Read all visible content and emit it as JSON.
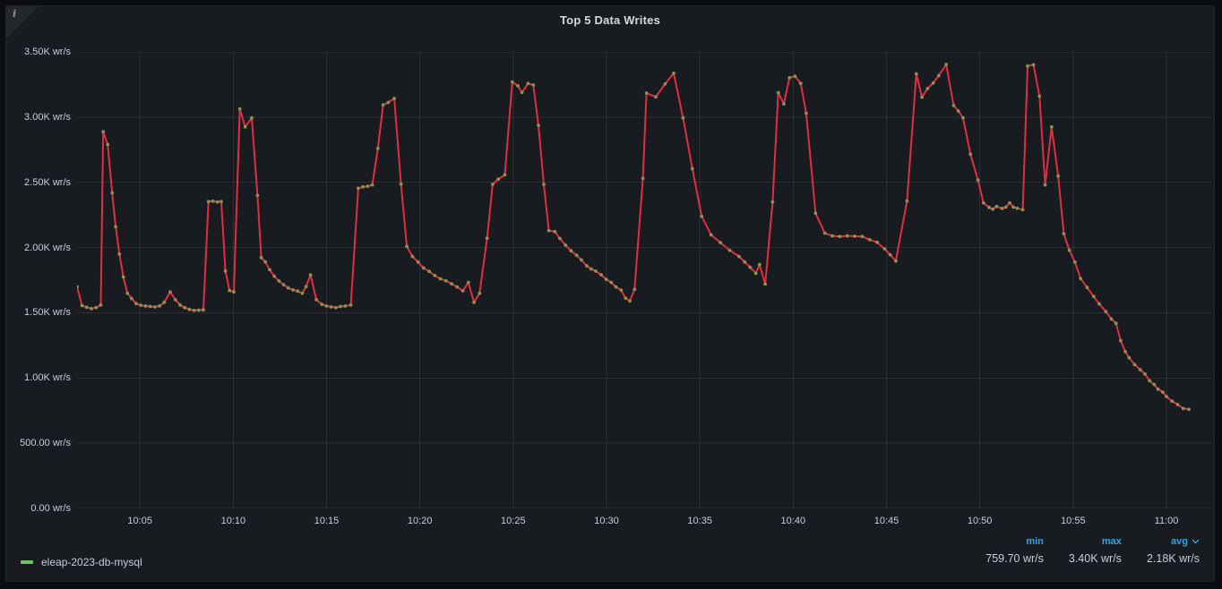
{
  "panel": {
    "title": "Top 5 Data Writes",
    "info_icon_glyph": "i"
  },
  "colors": {
    "page_bg": "#0c0d11",
    "panel_bg": "#181b1f",
    "panel_border": "#25272d",
    "title_text": "#d8d9da",
    "axis_text": "#c9ced6",
    "grid": "rgba(204,204,220,0.10)",
    "line": "#e02f44",
    "point": "#8a9254",
    "legend_swatch": "#73bf69",
    "stat_header": "#33a2e5",
    "stat_value": "#c9ced6"
  },
  "legend": {
    "series_label": "eleap-2023-db-mysql"
  },
  "stats": {
    "columns": [
      {
        "label": "min",
        "value": "759.70 wr/s",
        "sorted": false
      },
      {
        "label": "max",
        "value": "3.40K wr/s",
        "sorted": false
      },
      {
        "label": "avg",
        "value": "2.18K wr/s",
        "sorted": true
      }
    ]
  },
  "chart_data": {
    "type": "line",
    "title": "Top 5 Data Writes",
    "unit": "wr/s",
    "grid": true,
    "legend_position": "bottom",
    "x_axis": {
      "description": "time of day; minutes are offsets after 10:00",
      "plot_min_minute": 1.63,
      "plot_max_minute": 62.45,
      "ticks": [
        {
          "minute": 5,
          "label": "10:05"
        },
        {
          "minute": 10,
          "label": "10:10"
        },
        {
          "minute": 15,
          "label": "10:15"
        },
        {
          "minute": 20,
          "label": "10:20"
        },
        {
          "minute": 25,
          "label": "10:25"
        },
        {
          "minute": 30,
          "label": "10:30"
        },
        {
          "minute": 35,
          "label": "10:35"
        },
        {
          "minute": 40,
          "label": "10:40"
        },
        {
          "minute": 45,
          "label": "10:45"
        },
        {
          "minute": 50,
          "label": "10:50"
        },
        {
          "minute": 55,
          "label": "10:55"
        },
        {
          "minute": 60,
          "label": "11:00"
        }
      ]
    },
    "y_axis": {
      "min": 0,
      "max": 3500,
      "ticks": [
        {
          "value": 3500,
          "label": "3.50K wr/s"
        },
        {
          "value": 3000,
          "label": "3.00K wr/s"
        },
        {
          "value": 2500,
          "label": "2.50K wr/s"
        },
        {
          "value": 2000,
          "label": "2.00K wr/s"
        },
        {
          "value": 1500,
          "label": "1.50K wr/s"
        },
        {
          "value": 1000,
          "label": "1.00K wr/s"
        },
        {
          "value": 500,
          "label": "500.00 wr/s"
        },
        {
          "value": 0,
          "label": "0.00 wr/s"
        }
      ]
    },
    "series": [
      {
        "name": "eleap-2023-db-mysql",
        "min": 759.7,
        "max": 3400,
        "avg": 2180,
        "points": [
          [
            1.63,
            1700
          ],
          [
            1.9,
            1555
          ],
          [
            2.15,
            1542
          ],
          [
            2.4,
            1532
          ],
          [
            2.65,
            1540
          ],
          [
            2.9,
            1560
          ],
          [
            3.03,
            2888
          ],
          [
            3.27,
            2790
          ],
          [
            3.51,
            2420
          ],
          [
            3.7,
            2160
          ],
          [
            3.9,
            1950
          ],
          [
            4.11,
            1775
          ],
          [
            4.33,
            1650
          ],
          [
            4.55,
            1610
          ],
          [
            4.8,
            1570
          ],
          [
            5.05,
            1558
          ],
          [
            5.3,
            1552
          ],
          [
            5.55,
            1548
          ],
          [
            5.8,
            1545
          ],
          [
            6.05,
            1552
          ],
          [
            6.3,
            1580
          ],
          [
            6.62,
            1660
          ],
          [
            6.9,
            1600
          ],
          [
            7.15,
            1560
          ],
          [
            7.4,
            1540
          ],
          [
            7.65,
            1525
          ],
          [
            7.9,
            1518
          ],
          [
            8.15,
            1520
          ],
          [
            8.4,
            1522
          ],
          [
            8.67,
            2353
          ],
          [
            8.91,
            2355
          ],
          [
            9.15,
            2350
          ],
          [
            9.36,
            2353
          ],
          [
            9.58,
            1820
          ],
          [
            9.8,
            1671
          ],
          [
            10.03,
            1660
          ],
          [
            10.35,
            3063
          ],
          [
            10.64,
            2925
          ],
          [
            10.99,
            2994
          ],
          [
            11.3,
            2400
          ],
          [
            11.5,
            1923
          ],
          [
            11.72,
            1890
          ],
          [
            11.95,
            1830
          ],
          [
            12.2,
            1781
          ],
          [
            12.45,
            1744
          ],
          [
            12.7,
            1715
          ],
          [
            12.95,
            1690
          ],
          [
            13.2,
            1675
          ],
          [
            13.45,
            1666
          ],
          [
            13.7,
            1650
          ],
          [
            13.9,
            1700
          ],
          [
            14.14,
            1790
          ],
          [
            14.45,
            1600
          ],
          [
            14.75,
            1565
          ],
          [
            15.0,
            1552
          ],
          [
            15.25,
            1545
          ],
          [
            15.5,
            1540
          ],
          [
            15.75,
            1548
          ],
          [
            16.0,
            1552
          ],
          [
            16.3,
            1560
          ],
          [
            16.7,
            2455
          ],
          [
            16.95,
            2465
          ],
          [
            17.2,
            2470
          ],
          [
            17.45,
            2480
          ],
          [
            17.75,
            2760
          ],
          [
            18.03,
            3094
          ],
          [
            18.3,
            3112
          ],
          [
            18.63,
            3143
          ],
          [
            18.99,
            2487
          ],
          [
            19.3,
            2008
          ],
          [
            19.6,
            1932
          ],
          [
            19.9,
            1889
          ],
          [
            20.2,
            1843
          ],
          [
            20.5,
            1817
          ],
          [
            20.8,
            1786
          ],
          [
            21.1,
            1760
          ],
          [
            21.4,
            1745
          ],
          [
            21.7,
            1722
          ],
          [
            22.0,
            1698
          ],
          [
            22.3,
            1668
          ],
          [
            22.6,
            1733
          ],
          [
            22.9,
            1580
          ],
          [
            23.2,
            1650
          ],
          [
            23.6,
            2072
          ],
          [
            23.9,
            2484
          ],
          [
            24.2,
            2525
          ],
          [
            24.55,
            2557
          ],
          [
            24.95,
            3270
          ],
          [
            25.25,
            3240
          ],
          [
            25.47,
            3189
          ],
          [
            25.79,
            3258
          ],
          [
            26.08,
            3246
          ],
          [
            26.35,
            2937
          ],
          [
            26.64,
            2484
          ],
          [
            26.91,
            2130
          ],
          [
            27.23,
            2122
          ],
          [
            27.5,
            2070
          ],
          [
            27.8,
            2019
          ],
          [
            28.1,
            1975
          ],
          [
            28.4,
            1940
          ],
          [
            28.65,
            1905
          ],
          [
            28.94,
            1860
          ],
          [
            29.18,
            1836
          ],
          [
            29.42,
            1819
          ],
          [
            29.71,
            1791
          ],
          [
            29.98,
            1757
          ],
          [
            30.25,
            1733
          ],
          [
            30.51,
            1698
          ],
          [
            30.78,
            1674
          ],
          [
            31.02,
            1612
          ],
          [
            31.25,
            1590
          ],
          [
            31.5,
            1680
          ],
          [
            31.95,
            2530
          ],
          [
            32.14,
            3184
          ],
          [
            32.64,
            3155
          ],
          [
            33.14,
            3254
          ],
          [
            33.6,
            3337
          ],
          [
            34.1,
            2995
          ],
          [
            34.6,
            2605
          ],
          [
            35.1,
            2240
          ],
          [
            35.6,
            2097
          ],
          [
            36.1,
            2038
          ],
          [
            36.6,
            1979
          ],
          [
            37.1,
            1932
          ],
          [
            37.4,
            1889
          ],
          [
            37.7,
            1849
          ],
          [
            38.0,
            1802
          ],
          [
            38.2,
            1870
          ],
          [
            38.5,
            1720
          ],
          [
            38.9,
            2350
          ],
          [
            39.2,
            3188
          ],
          [
            39.5,
            3101
          ],
          [
            39.8,
            3302
          ],
          [
            40.1,
            3313
          ],
          [
            40.4,
            3259
          ],
          [
            40.7,
            3030
          ],
          [
            41.2,
            2263
          ],
          [
            41.7,
            2110
          ],
          [
            42.1,
            2090
          ],
          [
            42.5,
            2085
          ],
          [
            42.9,
            2090
          ],
          [
            43.3,
            2087
          ],
          [
            43.7,
            2085
          ],
          [
            44.1,
            2060
          ],
          [
            44.5,
            2040
          ],
          [
            44.9,
            1990
          ],
          [
            45.2,
            1945
          ],
          [
            45.5,
            1897
          ],
          [
            46.1,
            2357
          ],
          [
            46.6,
            3332
          ],
          [
            46.9,
            3153
          ],
          [
            47.2,
            3219
          ],
          [
            47.5,
            3261
          ],
          [
            47.8,
            3318
          ],
          [
            48.2,
            3404
          ],
          [
            48.6,
            3089
          ],
          [
            48.85,
            3047
          ],
          [
            49.1,
            2995
          ],
          [
            49.5,
            2716
          ],
          [
            49.9,
            2518
          ],
          [
            50.2,
            2343
          ],
          [
            50.5,
            2308
          ],
          [
            50.7,
            2295
          ],
          [
            50.9,
            2315
          ],
          [
            51.2,
            2300
          ],
          [
            51.4,
            2310
          ],
          [
            51.6,
            2343
          ],
          [
            51.8,
            2310
          ],
          [
            52.0,
            2302
          ],
          [
            52.3,
            2290
          ],
          [
            52.56,
            3392
          ],
          [
            52.88,
            3401
          ],
          [
            53.2,
            3160
          ],
          [
            53.5,
            2480
          ],
          [
            53.85,
            2925
          ],
          [
            54.2,
            2548
          ],
          [
            54.5,
            2106
          ],
          [
            54.8,
            1980
          ],
          [
            55.1,
            1888
          ],
          [
            55.4,
            1763
          ],
          [
            55.75,
            1694
          ],
          [
            56.1,
            1626
          ],
          [
            56.4,
            1568
          ],
          [
            56.75,
            1510
          ],
          [
            57.05,
            1453
          ],
          [
            57.3,
            1419
          ],
          [
            57.55,
            1286
          ],
          [
            57.8,
            1202
          ],
          [
            58.0,
            1156
          ],
          [
            58.3,
            1103
          ],
          [
            58.6,
            1064
          ],
          [
            58.85,
            1030
          ],
          [
            59.1,
            979
          ],
          [
            59.35,
            950
          ],
          [
            59.55,
            915
          ],
          [
            59.8,
            892
          ],
          [
            60.0,
            858
          ],
          [
            60.3,
            823
          ],
          [
            60.6,
            796
          ],
          [
            60.9,
            766
          ],
          [
            61.2,
            760
          ]
        ]
      }
    ]
  }
}
